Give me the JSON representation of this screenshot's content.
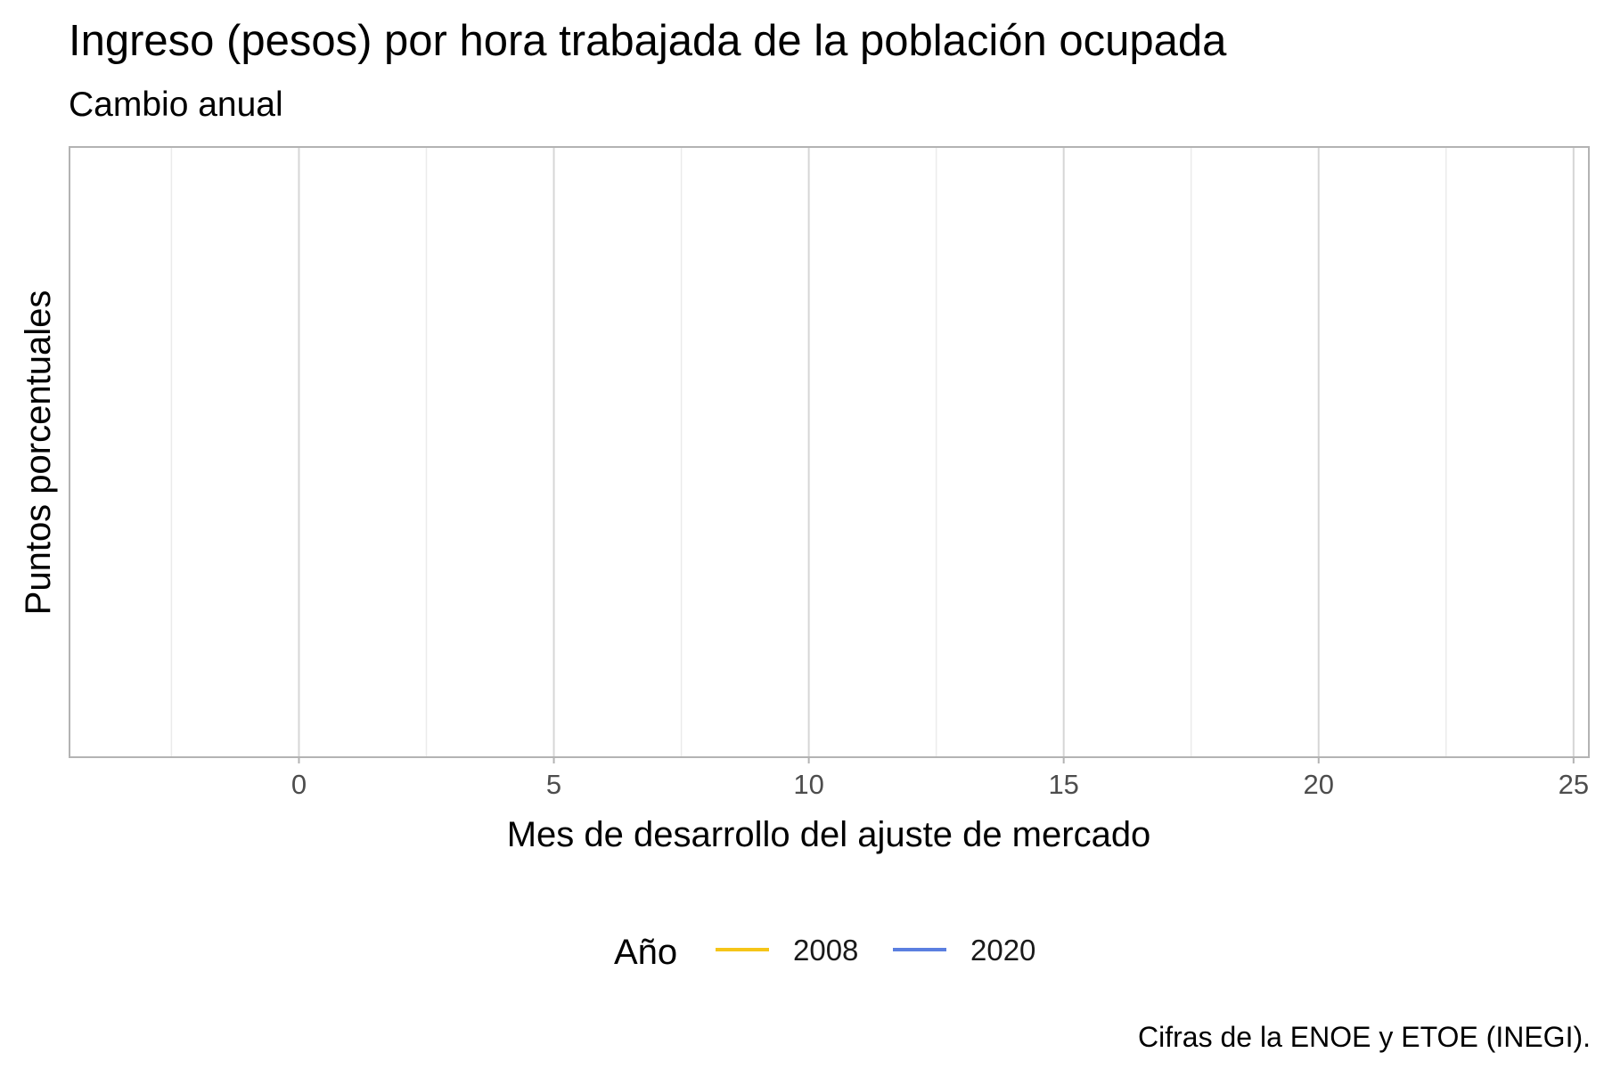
{
  "chart_data": {
    "type": "line",
    "title": "Ingreso (pesos) por hora trabajada de la población ocupada",
    "subtitle": "Cambio anual",
    "xlabel": "Mes de desarrollo del ajuste de mercado",
    "ylabel": "Puntos porcentuales",
    "xlim": [
      -4.5,
      25.3
    ],
    "x_ticks": [
      "0",
      "5",
      "10",
      "15",
      "20",
      "25"
    ],
    "x_tick_values": [
      0,
      5,
      10,
      15,
      20,
      25
    ],
    "x_minor_grid": [
      -2.5,
      2.5,
      7.5,
      12.5,
      17.5,
      22.5
    ],
    "y_ticks": [],
    "grid": true,
    "legend": {
      "title": "Año",
      "position": "bottom"
    },
    "series": [
      {
        "name": "2008",
        "color": "#F5C518",
        "points": []
      },
      {
        "name": "2020",
        "color": "#5B7FE0",
        "points": []
      }
    ],
    "caption": "Cifras de la ENOE y ETOE (INEGI)."
  }
}
